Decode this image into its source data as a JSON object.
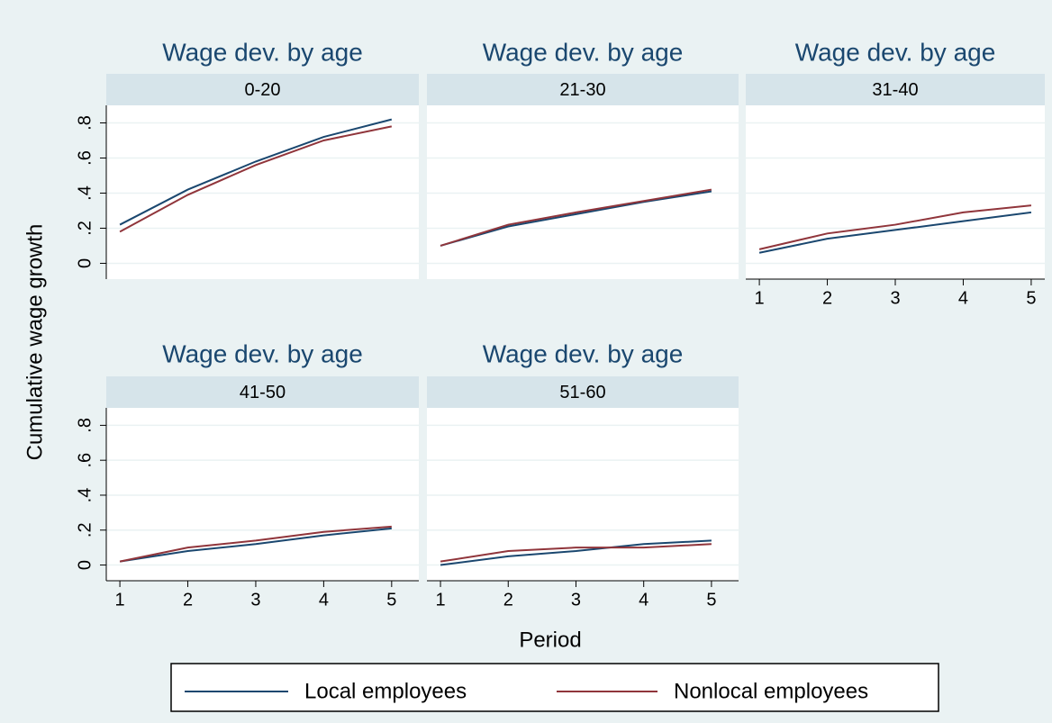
{
  "chart_data": [
    {
      "type": "line",
      "title": "Wage dev. by age",
      "subtitle": "0-20",
      "x": [
        1,
        2,
        3,
        4,
        5
      ],
      "series": [
        {
          "name": "Local employees",
          "color": "#1a476f",
          "values": [
            0.22,
            0.42,
            0.58,
            0.72,
            0.82
          ]
        },
        {
          "name": "Nonlocal employees",
          "color": "#90353b",
          "values": [
            0.18,
            0.39,
            0.56,
            0.7,
            0.78
          ]
        }
      ],
      "xlim": [
        0.8,
        5.4
      ],
      "ylim": [
        -0.09,
        0.9
      ],
      "yticks": [
        0,
        {
          "value": 0.2,
          "label": ".2"
        },
        {
          "value": 0.4,
          "label": ".4"
        },
        {
          "value": 0.6,
          "label": ".6"
        },
        {
          "value": 0.8,
          "label": ".8"
        }
      ],
      "ytick_labels": true,
      "grid": true
    },
    {
      "type": "line",
      "title": "Wage dev. by age",
      "subtitle": "21-30",
      "x": [
        1,
        2,
        3,
        4,
        5
      ],
      "series": [
        {
          "name": "Local employees",
          "color": "#1a476f",
          "values": [
            0.1,
            0.21,
            0.28,
            0.35,
            0.41
          ]
        },
        {
          "name": "Nonlocal employees",
          "color": "#90353b",
          "values": [
            0.1,
            0.22,
            0.29,
            0.355,
            0.42
          ]
        }
      ],
      "xlim": [
        0.8,
        5.4
      ],
      "ylim": [
        -0.09,
        0.9
      ],
      "yticks": [
        0,
        0.2,
        0.4,
        0.6,
        0.8
      ],
      "ytick_labels": false,
      "grid": true
    },
    {
      "type": "line",
      "title": "Wage dev. by age",
      "subtitle": "31-40",
      "x": [
        1,
        2,
        3,
        4,
        5
      ],
      "series": [
        {
          "name": "Local employees",
          "color": "#1a476f",
          "values": [
            0.06,
            0.14,
            0.19,
            0.24,
            0.29
          ]
        },
        {
          "name": "Nonlocal employees",
          "color": "#90353b",
          "values": [
            0.08,
            0.17,
            0.22,
            0.29,
            0.33
          ]
        }
      ],
      "xlim": [
        0.8,
        5.2
      ],
      "ylim": [
        -0.09,
        0.9
      ],
      "xticks": [
        1,
        2,
        3,
        4,
        5
      ],
      "yticks": [
        0,
        0.2,
        0.4,
        0.6,
        0.8
      ],
      "ytick_labels": false,
      "grid": true
    },
    {
      "type": "line",
      "title": "Wage dev. by age",
      "subtitle": "41-50",
      "x": [
        1,
        2,
        3,
        4,
        5
      ],
      "series": [
        {
          "name": "Local employees",
          "color": "#1a476f",
          "values": [
            0.02,
            0.08,
            0.12,
            0.17,
            0.21
          ]
        },
        {
          "name": "Nonlocal employees",
          "color": "#90353b",
          "values": [
            0.02,
            0.1,
            0.14,
            0.19,
            0.22
          ]
        }
      ],
      "xlim": [
        0.8,
        5.4
      ],
      "ylim": [
        -0.09,
        0.9
      ],
      "xticks": [
        1,
        2,
        3,
        4,
        5
      ],
      "yticks": [
        0,
        {
          "value": 0.2,
          "label": ".2"
        },
        {
          "value": 0.4,
          "label": ".4"
        },
        {
          "value": 0.6,
          "label": ".6"
        },
        {
          "value": 0.8,
          "label": ".8"
        }
      ],
      "ytick_labels": true,
      "grid": true
    },
    {
      "type": "line",
      "title": "Wage dev. by age",
      "subtitle": "51-60",
      "x": [
        1,
        2,
        3,
        4,
        5
      ],
      "series": [
        {
          "name": "Local employees",
          "color": "#1a476f",
          "values": [
            0.0,
            0.05,
            0.08,
            0.12,
            0.14
          ]
        },
        {
          "name": "Nonlocal employees",
          "color": "#90353b",
          "values": [
            0.02,
            0.08,
            0.1,
            0.1,
            0.12
          ]
        }
      ],
      "xlim": [
        0.8,
        5.4
      ],
      "ylim": [
        -0.09,
        0.9
      ],
      "xticks": [
        1,
        2,
        3,
        4,
        5
      ],
      "yticks": [
        0,
        0.2,
        0.4,
        0.6,
        0.8
      ],
      "ytick_labels": false,
      "grid": true
    }
  ],
  "ylabel": "Cumulative wage growth",
  "xlabel": "Period"
}
